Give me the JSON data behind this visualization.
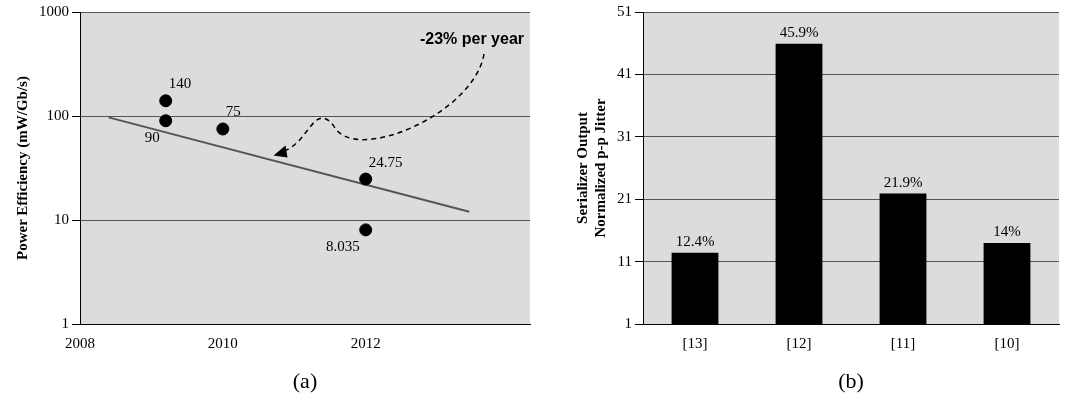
{
  "chart_data": [
    {
      "type": "scatter",
      "ylabel": "Power Efficiency (mW/Gb/s)",
      "log": "y",
      "grid": "y",
      "legend": false,
      "xlim": [
        2008,
        2014.3
      ],
      "xticks": [
        2008,
        2010,
        2012
      ],
      "ylim": [
        1,
        1000
      ],
      "yticks": [
        1,
        10,
        100,
        1000
      ],
      "series": [
        {
          "type": "scatter",
          "marker": "circle",
          "color": "#000000",
          "x": [
            2009.2,
            2009.2,
            2010,
            2012,
            2012
          ],
          "values": [
            140,
            90,
            75,
            24.75,
            8.035
          ],
          "value_labels": [
            "140",
            "90",
            "75",
            "24.75",
            "8.035"
          ]
        },
        {
          "type": "line",
          "color": "#555555",
          "x": [
            2008.4,
            2013.45
          ],
          "values": [
            97,
            12
          ]
        }
      ],
      "annotations": [
        "-23% per year",
        "(a)"
      ]
    },
    {
      "type": "bar",
      "ylabel": "Serializer Output\nNormalized p-p Jitter",
      "grid": "y",
      "legend": false,
      "categories": [
        "[13]",
        "[12]",
        "[11]",
        "[10]"
      ],
      "values": [
        12.4,
        45.9,
        21.9,
        14
      ],
      "value_labels": [
        "12.4%",
        "45.9%",
        "21.9%",
        "14%"
      ],
      "color": "#000000",
      "ylim": [
        1,
        51
      ],
      "yticks": [
        1,
        11,
        21,
        31,
        41,
        51
      ],
      "annotations": [
        "(b)"
      ]
    }
  ]
}
